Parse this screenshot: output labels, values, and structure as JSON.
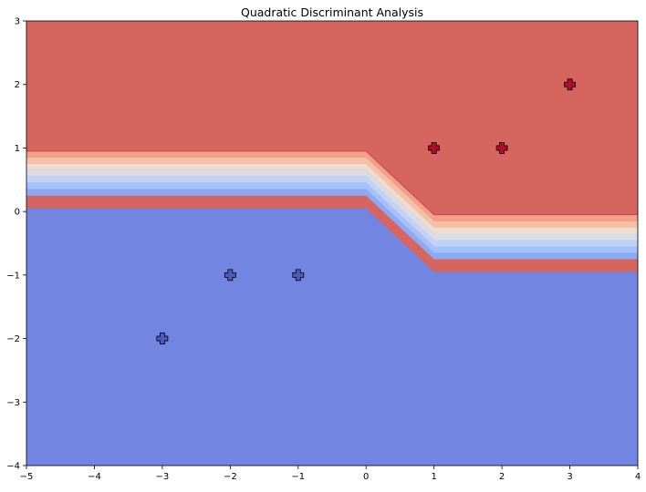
{
  "chart_data": {
    "type": "contour",
    "title": "Quadratic Discriminant Analysis",
    "xlabel": "",
    "ylabel": "",
    "xlim": [
      -5,
      4
    ],
    "ylim": [
      -4,
      3
    ],
    "xticks": [
      -5,
      -4,
      -3,
      -2,
      -1,
      0,
      1,
      2,
      3,
      4
    ],
    "yticks": [
      -4,
      -3,
      -2,
      -1,
      0,
      1,
      2,
      3
    ],
    "xtick_labels": [
      "−5",
      "−4",
      "−3",
      "−2",
      "−1",
      "0",
      "1",
      "2",
      "3",
      "4"
    ],
    "ytick_labels": [
      "−4",
      "−3",
      "−2",
      "−1",
      "0",
      "1",
      "2",
      "3"
    ],
    "grid": false,
    "legend": "none",
    "colormap": "coolwarm",
    "decision_regions": [
      {
        "class": 1,
        "color": "#d6645f",
        "boundary": [
          [
            -5,
            0.95
          ],
          [
            0,
            0.95
          ],
          [
            1,
            -0.05
          ],
          [
            4,
            -0.05
          ]
        ]
      },
      {
        "class": 0,
        "color": "#7285e0",
        "boundary": [
          [
            -5,
            0.05
          ],
          [
            0,
            0.05
          ],
          [
            1,
            -0.95
          ],
          [
            4,
            -0.95
          ]
        ]
      }
    ],
    "transition_bands": [
      {
        "color": "#f4a088",
        "offset": 0.85
      },
      {
        "color": "#f6c0a6",
        "offset": 0.75
      },
      {
        "color": "#eedcd2",
        "offset": 0.65
      },
      {
        "color": "#d9dce4",
        "offset": 0.55
      },
      {
        "color": "#c0d2f6",
        "offset": 0.45
      },
      {
        "color": "#a3c1fb",
        "offset": 0.35
      },
      {
        "color": "#8aaaf4",
        "offset": 0.25
      }
    ],
    "series": [
      {
        "class": 0,
        "marker": "plus",
        "color": "#4b5abb",
        "points": [
          [
            -3,
            -2
          ],
          [
            -2,
            -1
          ],
          [
            -1,
            -1
          ]
        ]
      },
      {
        "class": 1,
        "marker": "plus",
        "color": "#b40c2a",
        "points": [
          [
            1,
            1
          ],
          [
            2,
            1
          ],
          [
            3,
            2
          ]
        ]
      }
    ]
  }
}
